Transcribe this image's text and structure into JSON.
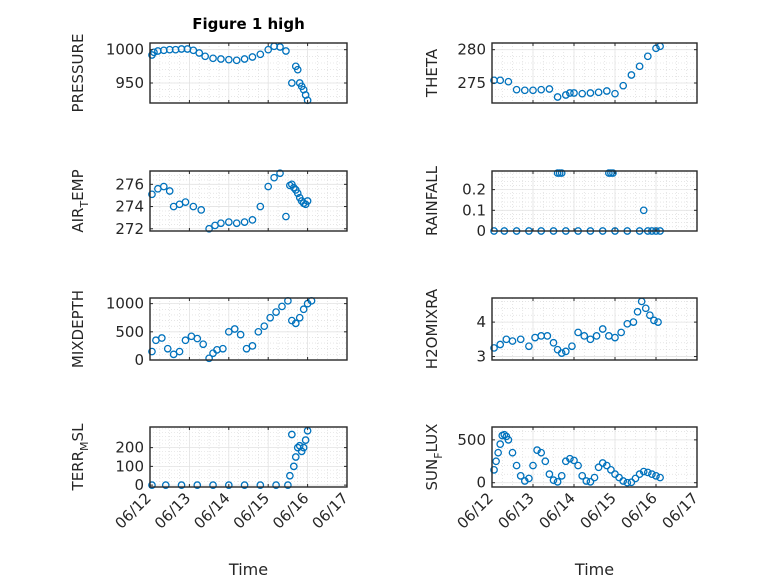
{
  "chart_data": [
    {
      "type": "scatter",
      "title": "Figure 1 high",
      "ylabel": "PRESSURE",
      "ylabel_main": "PRESSURE",
      "ylabel_sub": "",
      "ylabel_tail": "",
      "xlabel": "",
      "xlim": [
        0,
        5
      ],
      "ylim": [
        920,
        1010
      ],
      "yticks": [
        950,
        1000
      ],
      "xticks": [
        "06/12",
        "06/13",
        "06/14",
        "06/15",
        "06/16",
        "06/17"
      ],
      "show_xticklabels": false,
      "grid": true,
      "marker": "open-circle",
      "color": "#0072BD",
      "x": [
        0.05,
        0.1,
        0.2,
        0.35,
        0.5,
        0.65,
        0.8,
        0.95,
        1.1,
        1.25,
        1.4,
        1.6,
        1.8,
        2.0,
        2.2,
        2.4,
        2.6,
        2.8,
        3.0,
        3.15,
        3.3,
        3.45,
        3.6,
        3.7,
        3.75,
        3.8,
        3.85,
        3.9,
        3.95,
        4.0
      ],
      "y": [
        992,
        996,
        998,
        999,
        1000,
        1000,
        1001,
        1001,
        999,
        995,
        990,
        987,
        986,
        985,
        984,
        986,
        989,
        993,
        1000,
        1005,
        1004,
        998,
        950,
        975,
        970,
        950,
        945,
        940,
        932,
        924
      ]
    },
    {
      "type": "scatter",
      "title": "",
      "ylabel": "THETA",
      "ylabel_main": "THETA",
      "ylabel_sub": "",
      "ylabel_tail": "",
      "xlabel": "",
      "xlim": [
        0,
        5
      ],
      "ylim": [
        272,
        281
      ],
      "yticks": [
        275,
        280
      ],
      "xticks": [
        "06/12",
        "06/13",
        "06/14",
        "06/15",
        "06/16",
        "06/17"
      ],
      "show_xticklabels": false,
      "grid": true,
      "marker": "open-circle",
      "color": "#0072BD",
      "x": [
        0.05,
        0.2,
        0.4,
        0.6,
        0.8,
        1.0,
        1.2,
        1.4,
        1.6,
        1.8,
        1.9,
        2.0,
        2.2,
        2.4,
        2.6,
        2.8,
        3.0,
        3.2,
        3.4,
        3.6,
        3.8,
        4.0,
        4.1
      ],
      "y": [
        275.4,
        275.4,
        275.2,
        274.0,
        273.9,
        273.9,
        274.0,
        274.1,
        272.9,
        273.2,
        273.5,
        273.5,
        273.4,
        273.5,
        273.6,
        273.8,
        273.4,
        274.6,
        276.2,
        277.5,
        279.0,
        280.2,
        280.5
      ]
    },
    {
      "type": "scatter",
      "title": "",
      "ylabel": "AIR_TEMP",
      "ylabel_main": "AIR",
      "ylabel_sub": "T",
      "ylabel_tail": "EMP",
      "xlabel": "",
      "xlim": [
        0,
        5
      ],
      "ylim": [
        271.8,
        277.2
      ],
      "yticks": [
        272,
        274,
        276
      ],
      "xticks": [
        "06/12",
        "06/13",
        "06/14",
        "06/15",
        "06/16",
        "06/17"
      ],
      "show_xticklabels": false,
      "grid": true,
      "marker": "open-circle",
      "color": "#0072BD",
      "x": [
        0.05,
        0.2,
        0.35,
        0.5,
        0.6,
        0.75,
        0.9,
        1.1,
        1.3,
        1.5,
        1.65,
        1.8,
        2.0,
        2.2,
        2.4,
        2.6,
        2.8,
        3.0,
        3.15,
        3.3,
        3.45,
        3.55,
        3.6,
        3.65,
        3.7,
        3.75,
        3.8,
        3.85,
        3.9,
        3.95,
        4.0
      ],
      "y": [
        275.1,
        275.6,
        275.8,
        275.4,
        274.0,
        274.2,
        274.4,
        274.0,
        273.7,
        272.0,
        272.3,
        272.5,
        272.6,
        272.5,
        272.6,
        272.8,
        274.0,
        275.8,
        276.6,
        277.0,
        273.1,
        275.9,
        276.0,
        275.7,
        275.5,
        275.2,
        274.8,
        274.5,
        274.3,
        274.2,
        274.5
      ]
    },
    {
      "type": "scatter",
      "title": "",
      "ylabel": "RAINFALL",
      "ylabel_main": "RAINFALL",
      "ylabel_sub": "",
      "ylabel_tail": "",
      "xlabel": "",
      "xlim": [
        0,
        5
      ],
      "ylim": [
        0,
        0.29
      ],
      "yticks": [
        0,
        0.1,
        0.2
      ],
      "xticks": [
        "06/12",
        "06/13",
        "06/14",
        "06/15",
        "06/16",
        "06/17"
      ],
      "show_xticklabels": false,
      "grid": true,
      "marker": "open-circle",
      "color": "#0072BD",
      "x": [
        0.05,
        0.3,
        0.6,
        0.9,
        1.2,
        1.5,
        1.6,
        1.65,
        1.7,
        1.8,
        2.1,
        2.4,
        2.7,
        2.85,
        2.9,
        2.95,
        3.0,
        3.3,
        3.6,
        3.7,
        3.8,
        3.9,
        4.0,
        4.1
      ],
      "y": [
        0,
        0,
        0,
        0,
        0,
        0,
        0.28,
        0.28,
        0.28,
        0,
        0,
        0,
        0,
        0.28,
        0.28,
        0.28,
        0,
        0,
        0,
        0.1,
        0,
        0,
        0,
        0
      ]
    },
    {
      "type": "scatter",
      "title": "",
      "ylabel": "MIXDEPTH",
      "ylabel_main": "MIXDEPTH",
      "ylabel_sub": "",
      "ylabel_tail": "",
      "xlabel": "",
      "xlim": [
        0,
        5
      ],
      "ylim": [
        0,
        1100
      ],
      "yticks": [
        0,
        500,
        1000
      ],
      "xticks": [
        "06/12",
        "06/13",
        "06/14",
        "06/15",
        "06/16",
        "06/17"
      ],
      "show_xticklabels": false,
      "grid": true,
      "marker": "open-circle",
      "color": "#0072BD",
      "x": [
        0.05,
        0.15,
        0.3,
        0.45,
        0.6,
        0.75,
        0.9,
        1.05,
        1.2,
        1.35,
        1.5,
        1.6,
        1.7,
        1.85,
        2.0,
        2.15,
        2.3,
        2.45,
        2.6,
        2.75,
        2.9,
        3.05,
        3.2,
        3.35,
        3.5,
        3.6,
        3.7,
        3.8,
        3.9,
        4.0,
        4.1
      ],
      "y": [
        150,
        350,
        390,
        200,
        100,
        150,
        350,
        420,
        380,
        280,
        30,
        120,
        180,
        200,
        500,
        550,
        450,
        200,
        250,
        500,
        600,
        750,
        850,
        950,
        1050,
        700,
        650,
        750,
        900,
        1000,
        1050
      ]
    },
    {
      "type": "scatter",
      "title": "",
      "ylabel": "H2OMIXRA",
      "ylabel_main": "H2OMIXRA",
      "ylabel_sub": "",
      "ylabel_tail": "",
      "xlabel": "",
      "xlim": [
        0,
        5
      ],
      "ylim": [
        2.9,
        4.7
      ],
      "yticks": [
        3,
        4
      ],
      "xticks": [
        "06/12",
        "06/13",
        "06/14",
        "06/15",
        "06/16",
        "06/17"
      ],
      "show_xticklabels": false,
      "grid": true,
      "marker": "open-circle",
      "color": "#0072BD",
      "x": [
        0.05,
        0.2,
        0.35,
        0.5,
        0.7,
        0.9,
        1.05,
        1.2,
        1.35,
        1.5,
        1.6,
        1.7,
        1.8,
        1.95,
        2.1,
        2.25,
        2.4,
        2.55,
        2.7,
        2.85,
        3.0,
        3.15,
        3.3,
        3.45,
        3.55,
        3.65,
        3.75,
        3.85,
        3.95,
        4.05
      ],
      "y": [
        3.25,
        3.35,
        3.5,
        3.45,
        3.5,
        3.3,
        3.55,
        3.6,
        3.6,
        3.4,
        3.2,
        3.1,
        3.15,
        3.3,
        3.7,
        3.6,
        3.5,
        3.6,
        3.8,
        3.6,
        3.55,
        3.7,
        3.95,
        4.0,
        4.3,
        4.6,
        4.4,
        4.2,
        4.05,
        4.0
      ]
    },
    {
      "type": "scatter",
      "title": "",
      "ylabel": "TERR_MSL",
      "ylabel_main": "TERR",
      "ylabel_sub": "M",
      "ylabel_tail": "SL",
      "xlabel": "Time",
      "xlim": [
        0,
        5
      ],
      "ylim": [
        -10,
        310
      ],
      "yticks": [
        0,
        100,
        200
      ],
      "xticks": [
        "06/12",
        "06/13",
        "06/14",
        "06/15",
        "06/16",
        "06/17"
      ],
      "show_xticklabels": true,
      "grid": true,
      "marker": "open-circle",
      "color": "#0072BD",
      "x": [
        0.05,
        0.4,
        0.8,
        1.2,
        1.6,
        2.0,
        2.4,
        2.8,
        3.2,
        3.5,
        3.55,
        3.6,
        3.65,
        3.7,
        3.75,
        3.8,
        3.85,
        3.9,
        3.95,
        4.0
      ],
      "y": [
        0,
        0,
        0,
        0,
        0,
        0,
        0,
        0,
        0,
        0,
        50,
        270,
        100,
        150,
        200,
        210,
        180,
        200,
        240,
        290
      ]
    },
    {
      "type": "scatter",
      "title": "",
      "ylabel": "SUN_FLUX",
      "ylabel_main": "SUN",
      "ylabel_sub": "F",
      "ylabel_tail": "LUX",
      "xlabel": "Time",
      "xlim": [
        0,
        5
      ],
      "ylim": [
        -50,
        650
      ],
      "yticks": [
        0,
        500
      ],
      "xticks": [
        "06/12",
        "06/13",
        "06/14",
        "06/15",
        "06/16",
        "06/17"
      ],
      "show_xticklabels": true,
      "grid": true,
      "marker": "open-circle",
      "color": "#0072BD",
      "x": [
        0.05,
        0.1,
        0.15,
        0.2,
        0.25,
        0.3,
        0.35,
        0.4,
        0.5,
        0.6,
        0.7,
        0.8,
        0.9,
        1.0,
        1.1,
        1.2,
        1.3,
        1.4,
        1.5,
        1.6,
        1.7,
        1.8,
        1.9,
        2.0,
        2.1,
        2.2,
        2.3,
        2.4,
        2.5,
        2.6,
        2.7,
        2.8,
        2.9,
        3.0,
        3.1,
        3.2,
        3.3,
        3.4,
        3.5,
        3.6,
        3.7,
        3.8,
        3.9,
        4.0,
        4.1
      ],
      "y": [
        150,
        250,
        350,
        450,
        550,
        560,
        540,
        500,
        350,
        200,
        80,
        20,
        50,
        200,
        380,
        350,
        250,
        100,
        30,
        10,
        80,
        250,
        280,
        260,
        200,
        80,
        20,
        10,
        60,
        180,
        230,
        200,
        150,
        100,
        60,
        20,
        0,
        5,
        50,
        100,
        130,
        120,
        100,
        80,
        60
      ]
    }
  ]
}
